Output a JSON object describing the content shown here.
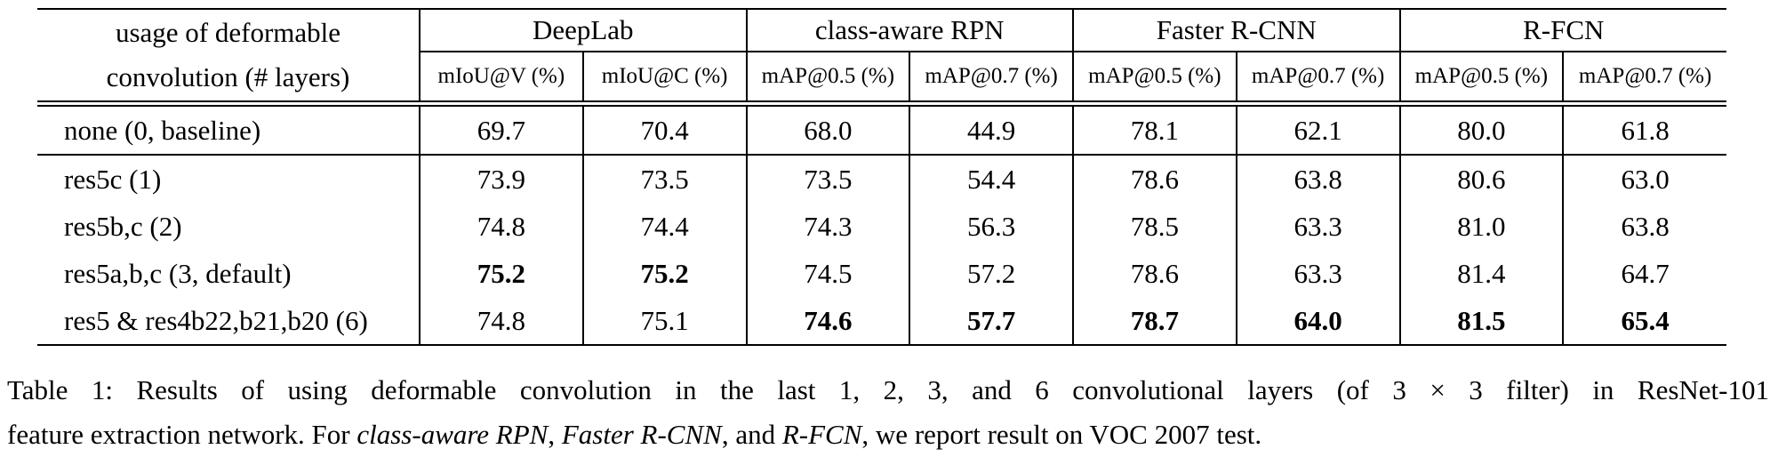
{
  "table": {
    "corner_header": {
      "line1": "usage of deformable",
      "line2": "convolution (# layers)"
    },
    "groups": [
      {
        "label": "DeepLab",
        "subcolumns": [
          "mIoU@V (%)",
          "mIoU@C (%)"
        ]
      },
      {
        "label": "class-aware RPN",
        "subcolumns": [
          "mAP@0.5 (%)",
          "mAP@0.7 (%)"
        ]
      },
      {
        "label": "Faster R-CNN",
        "subcolumns": [
          "mAP@0.5 (%)",
          "mAP@0.7 (%)"
        ]
      },
      {
        "label": "R-FCN",
        "subcolumns": [
          "mAP@0.5 (%)",
          "mAP@0.7 (%)"
        ]
      }
    ],
    "rows": [
      {
        "label": "none (0, baseline)",
        "values": [
          "69.7",
          "70.4",
          "68.0",
          "44.9",
          "78.1",
          "62.1",
          "80.0",
          "61.8"
        ],
        "bold": [
          0,
          0,
          0,
          0,
          0,
          0,
          0,
          0
        ],
        "rule_below": true
      },
      {
        "label": "res5c (1)",
        "values": [
          "73.9",
          "73.5",
          "73.5",
          "54.4",
          "78.6",
          "63.8",
          "80.6",
          "63.0"
        ],
        "bold": [
          0,
          0,
          0,
          0,
          0,
          0,
          0,
          0
        ],
        "rule_below": false
      },
      {
        "label": "res5b,c (2)",
        "values": [
          "74.8",
          "74.4",
          "74.3",
          "56.3",
          "78.5",
          "63.3",
          "81.0",
          "63.8"
        ],
        "bold": [
          0,
          0,
          0,
          0,
          0,
          0,
          0,
          0
        ],
        "rule_below": false
      },
      {
        "label": "res5a,b,c (3, default)",
        "values": [
          "75.2",
          "75.2",
          "74.5",
          "57.2",
          "78.6",
          "63.3",
          "81.4",
          "64.7"
        ],
        "bold": [
          1,
          1,
          0,
          0,
          0,
          0,
          0,
          0
        ],
        "rule_below": false
      },
      {
        "label": "res5 & res4b22,b21,b20 (6)",
        "values": [
          "74.8",
          "75.1",
          "74.6",
          "57.7",
          "78.7",
          "64.0",
          "81.5",
          "65.4"
        ],
        "bold": [
          0,
          0,
          1,
          1,
          1,
          1,
          1,
          1
        ],
        "rule_below": false
      }
    ]
  },
  "chart_data": {
    "type": "table",
    "title": "Table 1",
    "categories": [
      "none (0, baseline)",
      "res5c (1)",
      "res5b,c (2)",
      "res5a,b,c (3, default)",
      "res5 & res4b22,b21,b20 (6)"
    ],
    "series": [
      {
        "name": "DeepLab mIoU@V (%)",
        "values": [
          69.7,
          73.9,
          74.8,
          75.2,
          74.8
        ]
      },
      {
        "name": "DeepLab mIoU@C (%)",
        "values": [
          70.4,
          73.5,
          74.4,
          75.2,
          75.1
        ]
      },
      {
        "name": "class-aware RPN mAP@0.5 (%)",
        "values": [
          68.0,
          73.5,
          74.3,
          74.5,
          74.6
        ]
      },
      {
        "name": "class-aware RPN mAP@0.7 (%)",
        "values": [
          44.9,
          54.4,
          56.3,
          57.2,
          57.7
        ]
      },
      {
        "name": "Faster R-CNN mAP@0.5 (%)",
        "values": [
          78.1,
          78.6,
          78.5,
          78.6,
          78.7
        ]
      },
      {
        "name": "Faster R-CNN mAP@0.7 (%)",
        "values": [
          62.1,
          63.8,
          63.3,
          63.3,
          64.0
        ]
      },
      {
        "name": "R-FCN mAP@0.5 (%)",
        "values": [
          80.0,
          80.6,
          81.0,
          81.4,
          81.5
        ]
      },
      {
        "name": "R-FCN mAP@0.7 (%)",
        "values": [
          61.8,
          63.0,
          63.8,
          64.7,
          65.4
        ]
      }
    ]
  },
  "caption": {
    "lines": [
      {
        "justified": true,
        "segments": [
          {
            "text": "Table 1: Results of using deformable convolution in the last 1, 2, 3, and 6 convolutional layers (of 3 × 3 filter) in ResNet-101",
            "italic": false
          }
        ]
      },
      {
        "justified": false,
        "segments": [
          {
            "text": "feature extraction network. For ",
            "italic": false
          },
          {
            "text": "class-aware RPN",
            "italic": true
          },
          {
            "text": ", ",
            "italic": false
          },
          {
            "text": "Faster R-CNN",
            "italic": true
          },
          {
            "text": ", and ",
            "italic": false
          },
          {
            "text": "R-FCN",
            "italic": true
          },
          {
            "text": ", we report result on VOC 2007 test.",
            "italic": false
          }
        ]
      }
    ]
  }
}
